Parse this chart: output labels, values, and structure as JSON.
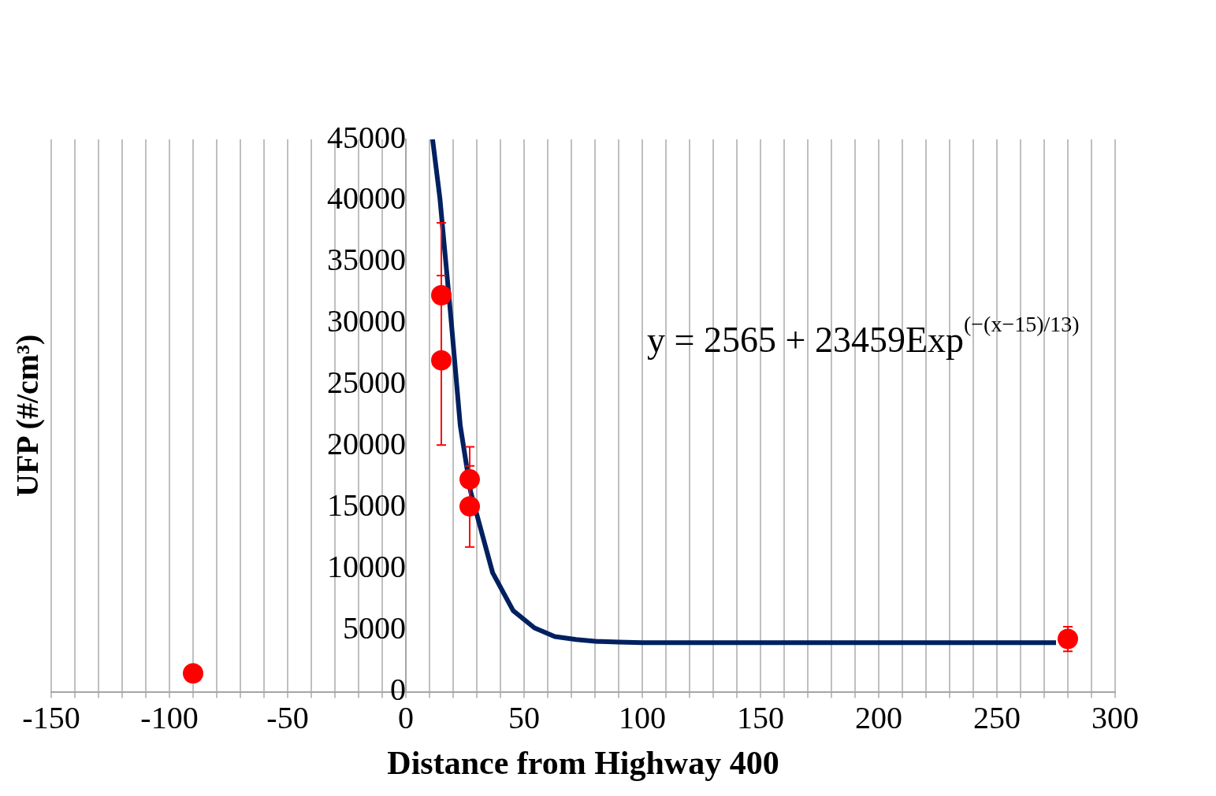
{
  "chart_data": {
    "type": "scatter",
    "xlabel": "Distance from Highway 400",
    "ylabel": "UFP (#/cm³)",
    "series": [
      {
        "color": "#ff0000",
        "x": [
          -90,
          15,
          15,
          27,
          27,
          280
        ],
        "values": [
          1500,
          32300,
          27000,
          17300,
          15100,
          4300
        ],
        "errors": [
          null,
          5900,
          6900,
          2650,
          3300,
          1000
        ]
      },
      {
        "type": "line",
        "color": "#002060",
        "marker": "none",
        "x": [
          11.3,
          14.4,
          19,
          23,
          27.4,
          36.7,
          45.4,
          54.4,
          63,
          72,
          81,
          90,
          100,
          150,
          200,
          275
        ],
        "values": [
          45000,
          40200,
          30600,
          21700,
          16300,
          9700,
          6600,
          5200,
          4500,
          4250,
          4100,
          4050,
          4000,
          4000,
          4000,
          4000
        ]
      }
    ],
    "xlim": [
      -150,
      300
    ],
    "xticks": [
      -150,
      {
        "value": -140,
        "label": null
      },
      {
        "value": -130,
        "label": null
      },
      {
        "value": -120,
        "label": null
      },
      {
        "value": -110,
        "label": null
      },
      -100,
      {
        "value": -90,
        "label": null
      },
      {
        "value": -80,
        "label": null
      },
      {
        "value": -70,
        "label": null
      },
      {
        "value": -60,
        "label": null
      },
      -50,
      {
        "value": -40,
        "label": null
      },
      {
        "value": -30,
        "label": null
      },
      {
        "value": -20,
        "label": null
      },
      {
        "value": -10,
        "label": null
      },
      0,
      {
        "value": 10,
        "label": null
      },
      {
        "value": 20,
        "label": null
      },
      {
        "value": 30,
        "label": null
      },
      {
        "value": 40,
        "label": null
      },
      50,
      {
        "value": 60,
        "label": null
      },
      {
        "value": 70,
        "label": null
      },
      {
        "value": 80,
        "label": null
      },
      {
        "value": 90,
        "label": null
      },
      100,
      {
        "value": 110,
        "label": null
      },
      {
        "value": 120,
        "label": null
      },
      {
        "value": 130,
        "label": null
      },
      {
        "value": 140,
        "label": null
      },
      150,
      {
        "value": 160,
        "label": null
      },
      {
        "value": 170,
        "label": null
      },
      {
        "value": 180,
        "label": null
      },
      {
        "value": 190,
        "label": null
      },
      200,
      {
        "value": 210,
        "label": null
      },
      {
        "value": 220,
        "label": null
      },
      {
        "value": 230,
        "label": null
      },
      {
        "value": 240,
        "label": null
      },
      250,
      {
        "value": 260,
        "label": null
      },
      {
        "value": 270,
        "label": null
      },
      {
        "value": 280,
        "label": null
      },
      {
        "value": 290,
        "label": null
      },
      300
    ],
    "ylim": [
      0,
      45000
    ],
    "yticks": [
      0,
      5000,
      10000,
      15000,
      20000,
      25000,
      30000,
      35000,
      40000,
      45000
    ],
    "grid": "x",
    "legend": false,
    "marker": "circle",
    "annotations": [
      "y = 2565 + 23459Exp$^{(−(x−15)/13)}$"
    ]
  }
}
